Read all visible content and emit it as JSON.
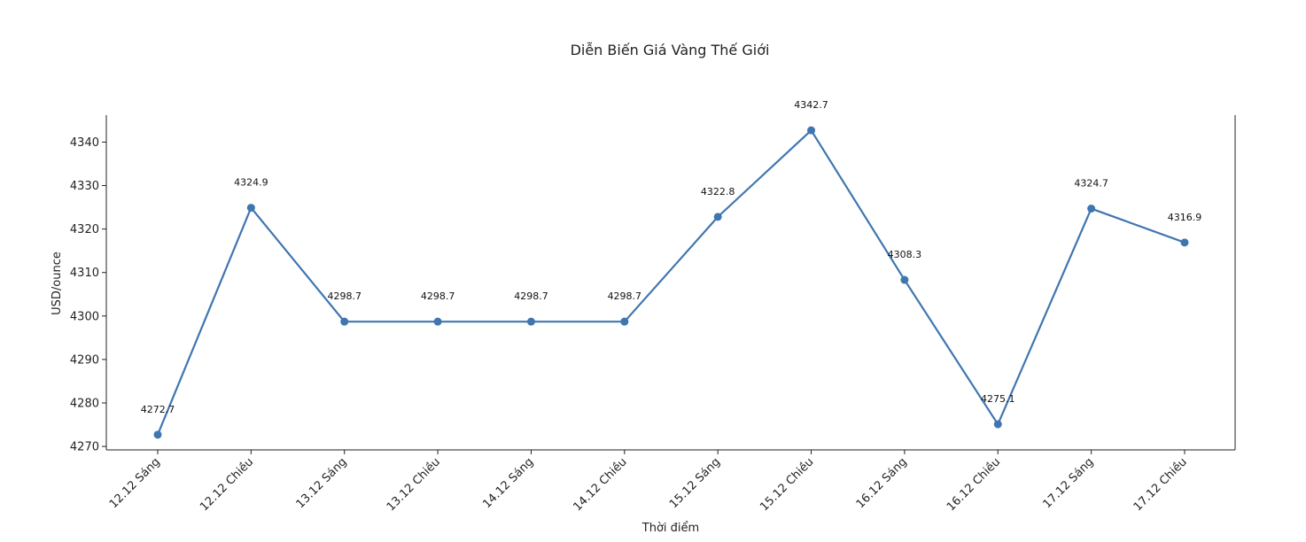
{
  "chart_data": {
    "type": "line",
    "title": "Diễn Biến Giá Vàng Thế Giới",
    "xlabel": "Thời điểm",
    "ylabel": "USD/ounce",
    "categories": [
      "12.12 Sáng",
      "12.12 Chiều",
      "13.12 Sáng",
      "13.12 Chiều",
      "14.12 Sáng",
      "14.12 Chiều",
      "15.12 Sáng",
      "15.12 Chiều",
      "16.12 Sáng",
      "16.12 Chiều",
      "17.12 Sáng",
      "17.12 Chiều"
    ],
    "series": [
      {
        "values": [
          4272.7,
          4324.9,
          4298.7,
          4298.7,
          4298.7,
          4298.7,
          4322.8,
          4342.7,
          4308.3,
          4275.1,
          4324.7,
          4316.9
        ]
      }
    ],
    "data_labels": [
      "4272.7",
      "4324.9",
      "4298.7",
      "4298.7",
      "4298.7",
      "4298.7",
      "4322.8",
      "4342.7",
      "4308.3",
      "4275.1",
      "4324.7",
      "4316.9"
    ],
    "yticks": [
      4270,
      4280,
      4290,
      4300,
      4310,
      4320,
      4330,
      4340
    ],
    "ylim": [
      4269.2,
      4346.2
    ],
    "grid": false,
    "color": "#3f76b0"
  }
}
